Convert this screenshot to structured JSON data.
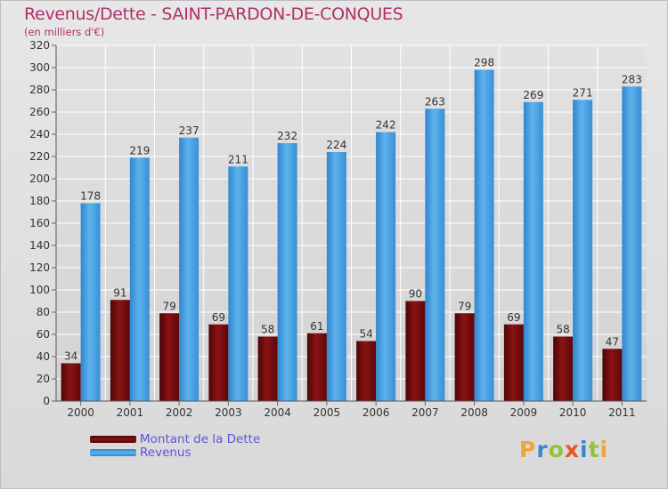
{
  "title": "Revenus/Dette - SAINT-PARDON-DE-CONQUES",
  "subtitle": "(en milliers d'€)",
  "logo": {
    "text": "Proxiti",
    "letters": [
      "P",
      "r",
      "o",
      "x",
      "i",
      "t",
      "i"
    ]
  },
  "colors": {
    "dette": "#7a0f10",
    "revenus": "#4aa3e3",
    "title": "#b0306a",
    "legend_text": "#5a55d6"
  },
  "chart_data": {
    "type": "bar",
    "title": "Revenus/Dette - SAINT-PARDON-DE-CONQUES",
    "subtitle": "(en milliers d'€)",
    "categories": [
      "2000",
      "2001",
      "2002",
      "2003",
      "2004",
      "2005",
      "2006",
      "2007",
      "2008",
      "2009",
      "2010",
      "2011"
    ],
    "series": [
      {
        "name": "Montant de la Dette",
        "values": [
          34,
          91,
          79,
          69,
          58,
          61,
          54,
          90,
          79,
          69,
          58,
          47
        ]
      },
      {
        "name": "Revenus",
        "values": [
          178,
          219,
          237,
          211,
          232,
          224,
          242,
          263,
          298,
          269,
          271,
          283
        ]
      }
    ],
    "ylim": [
      0,
      320
    ],
    "yticks": [
      0,
      20,
      40,
      60,
      80,
      100,
      120,
      140,
      160,
      180,
      200,
      220,
      240,
      260,
      280,
      300,
      320
    ],
    "grid": true,
    "legend_position": "bottom-left",
    "data_labels": true
  }
}
